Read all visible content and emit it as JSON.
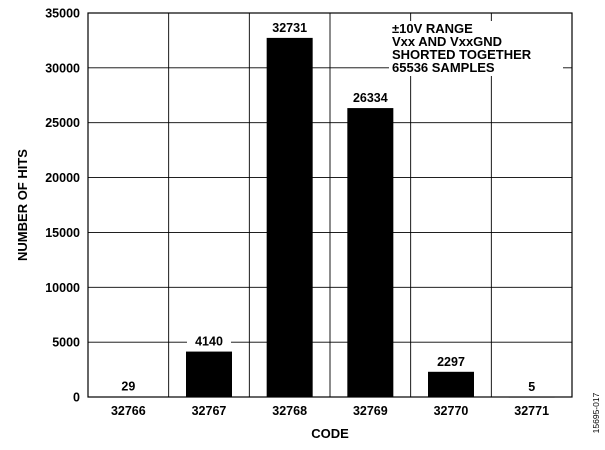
{
  "chart_data": {
    "type": "bar",
    "title": "",
    "xlabel": "CODE",
    "ylabel": "NUMBER OF HITS",
    "categories": [
      "32766",
      "32767",
      "32768",
      "32769",
      "32770",
      "32771"
    ],
    "values": [
      29,
      4140,
      32731,
      26334,
      2297,
      5
    ],
    "data_labels": [
      "29",
      "4140",
      "32731",
      "26334",
      "2297",
      "5"
    ],
    "ylim": [
      0,
      35000
    ],
    "yticks": [
      0,
      5000,
      10000,
      15000,
      20000,
      25000,
      30000,
      35000
    ],
    "grid": true,
    "bar_color": "#000000",
    "annotation": [
      "±10V RANGE",
      "Vxx AND VxxGND",
      "SHORTED TOGETHER",
      "65536 SAMPLES"
    ],
    "figure_id": "15695-017"
  }
}
